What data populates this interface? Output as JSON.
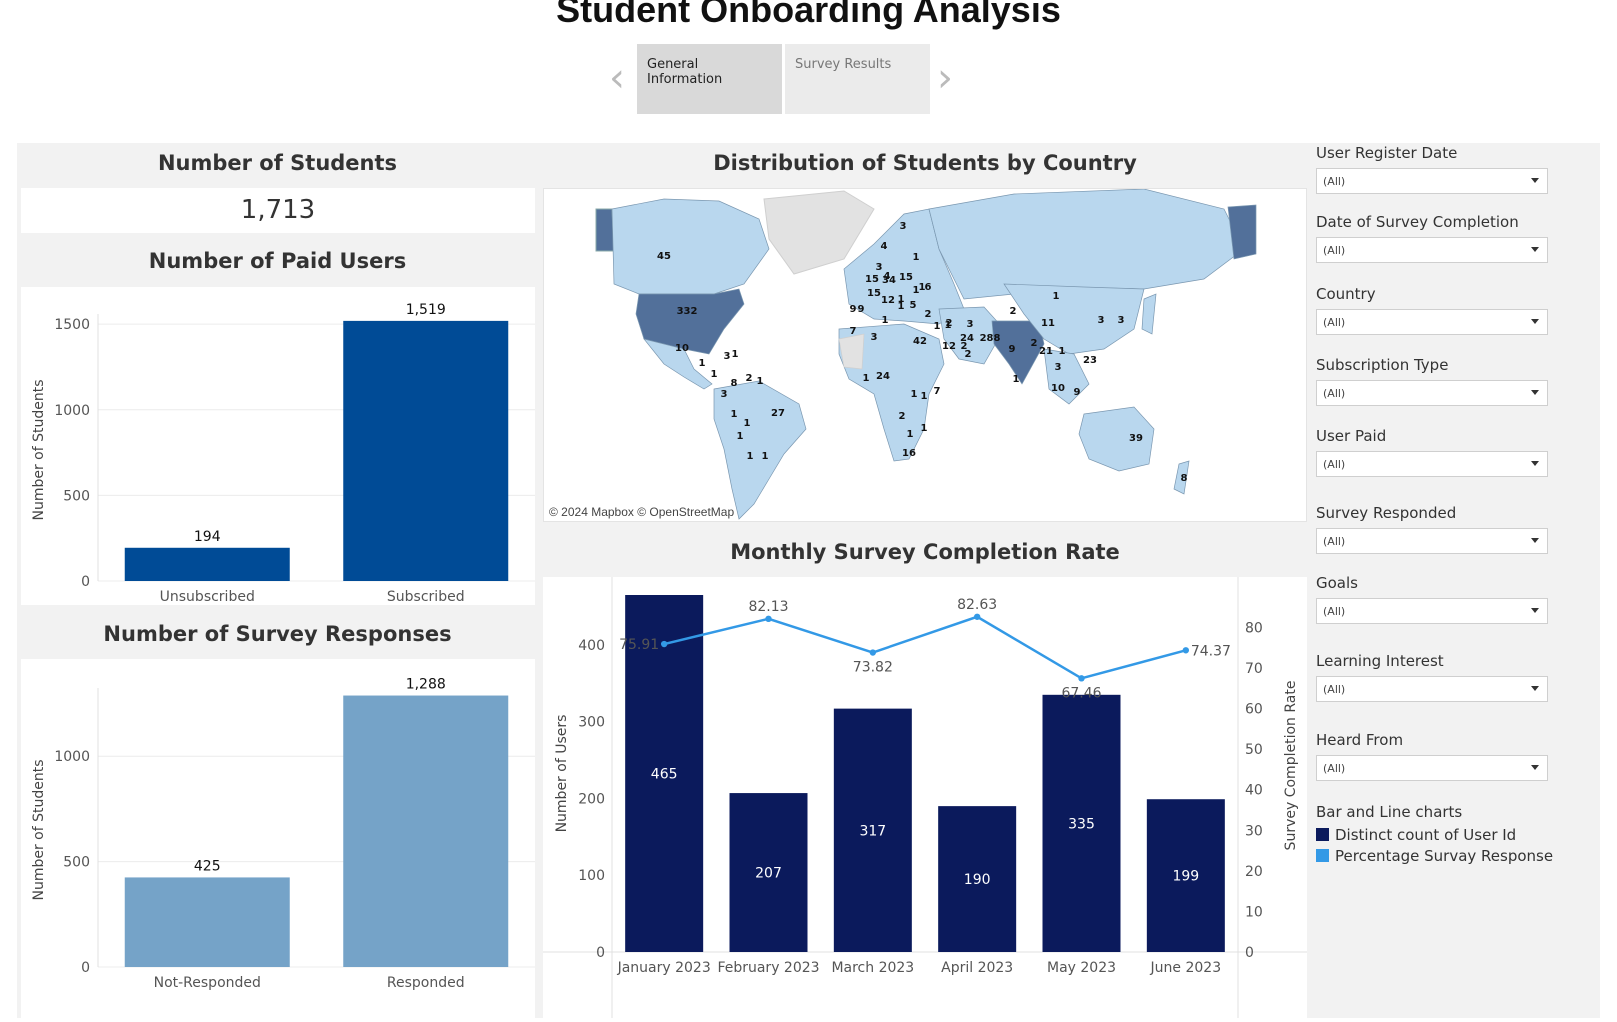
{
  "page": {
    "title": "Student Onboarding Analysis",
    "tabs": [
      "General Information",
      "Survey Results"
    ],
    "active_tab": "General Information"
  },
  "kpi": {
    "students_title": "Number of Students",
    "students_value": "1,713"
  },
  "map": {
    "title": "Distribution of Students by Country",
    "attribution": "© 2024 Mapbox © OpenStreetMap ",
    "labels": [
      "45",
      "332",
      "10",
      "1",
      "3",
      "1",
      "1",
      "8",
      "2",
      "1",
      "3",
      "1",
      "1",
      "27",
      "1",
      "1",
      "1",
      "2",
      "3",
      "4",
      "4",
      "1",
      "1",
      "15",
      "3",
      "34",
      "15",
      "1",
      "6",
      "9",
      "9",
      "15",
      "12",
      "1",
      "5",
      "1",
      "7",
      "3",
      "1",
      "1",
      "42",
      "12",
      "1",
      "2",
      "2",
      "2",
      "3",
      "24",
      "288",
      "9",
      "2",
      "21",
      "1",
      "3",
      "10",
      "9",
      "23",
      "11",
      "3",
      "3",
      "1",
      "2",
      "1",
      "24",
      "1",
      "1",
      "7",
      "2",
      "1",
      "1",
      "16",
      "39",
      "8",
      "1"
    ],
    "colors": {
      "light": "#b9d7ee",
      "mid": "#7fa8cc",
      "dark": "#52709a",
      "none": "#e2e2e2"
    }
  },
  "filters": {
    "items": [
      {
        "label": "User Register Date",
        "value": "(All)"
      },
      {
        "label": "Date of Survey Completion",
        "value": "(All)"
      },
      {
        "label": "Country",
        "value": "(All)"
      },
      {
        "label": "Subscription Type",
        "value": "(All)"
      },
      {
        "label": "User Paid",
        "value": "(All)"
      },
      {
        "label": "Survey Responded",
        "value": "(All)"
      },
      {
        "label": "Goals",
        "value": "(All)"
      },
      {
        "label": "Learning Interest",
        "value": "(All)"
      },
      {
        "label": "Heard From",
        "value": "(All)"
      }
    ]
  },
  "legend": {
    "title": "Bar and Line charts",
    "items": [
      {
        "label": "Distinct count of User Id",
        "color": "#0b1a5c"
      },
      {
        "label": "Percentage Survay Response",
        "color": "#3399e6"
      }
    ]
  },
  "chart_data": [
    {
      "id": "paid",
      "type": "bar",
      "title": "Number of Paid Users",
      "categories": [
        "Unsubscribed",
        "Subscribed"
      ],
      "values": [
        194,
        1519
      ],
      "value_labels": [
        "194",
        "1,519"
      ],
      "ylabel": "Number of Students",
      "ylim": [
        0,
        1530
      ],
      "yticks": [
        0,
        500,
        1000,
        1500
      ],
      "color": "#004b96"
    },
    {
      "id": "survey",
      "type": "bar",
      "title": "Number of Survey Responses",
      "categories": [
        "Not-Responded",
        "Responded"
      ],
      "values": [
        425,
        1288
      ],
      "value_labels": [
        "425",
        "1,288"
      ],
      "ylabel": "Number of Students",
      "ylim": [
        0,
        1300
      ],
      "yticks": [
        0,
        500,
        1000
      ],
      "color": "#75a3c8"
    },
    {
      "id": "monthly",
      "type": "bar",
      "title": "Monthly Survey Completion Rate",
      "categories": [
        "January 2023",
        "February 2023",
        "March 2023",
        "April 2023",
        "May 2023",
        "June 2023"
      ],
      "series": [
        {
          "name": "Distinct count of User Id",
          "type": "bar",
          "values": [
            465,
            207,
            317,
            190,
            335,
            199
          ],
          "color": "#0b1a5c"
        },
        {
          "name": "Percentage Survay Response",
          "type": "line",
          "values": [
            75.91,
            82.13,
            73.82,
            82.63,
            67.46,
            74.37
          ],
          "color": "#3399e6"
        }
      ],
      "ylabel": "Number of Users",
      "ylim": [
        0,
        465
      ],
      "yticks": [
        0,
        100,
        200,
        300,
        400
      ],
      "y2label": "Survey Completion Rate",
      "y2lim": [
        0,
        88
      ],
      "y2ticks": [
        0,
        10,
        20,
        30,
        40,
        50,
        60,
        70,
        80
      ]
    }
  ]
}
